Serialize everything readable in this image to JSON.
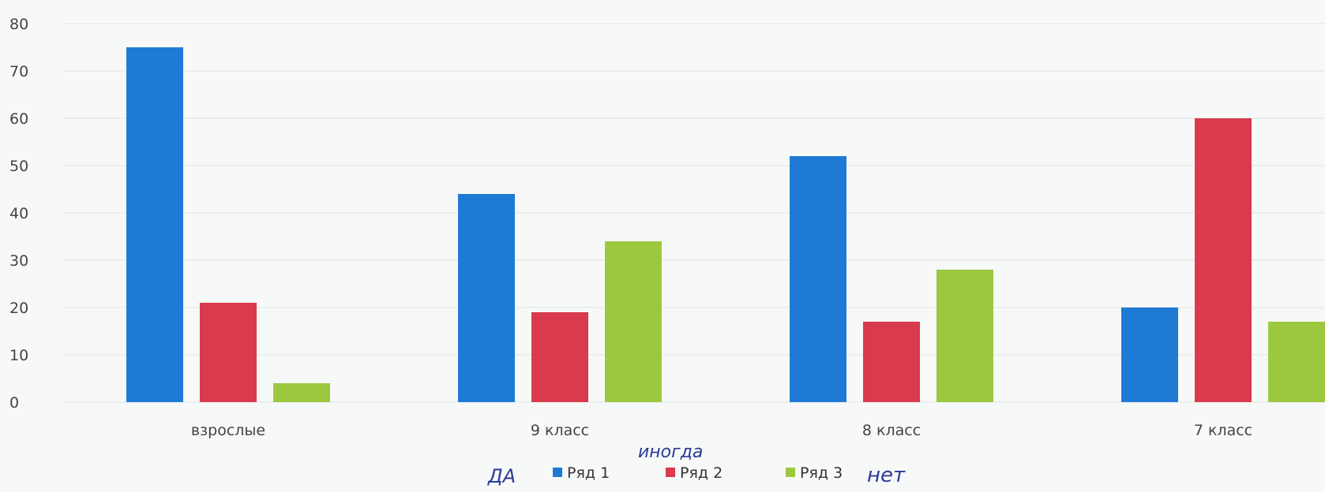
{
  "chart_data": {
    "type": "bar",
    "categories": [
      "взрослые",
      "9 класс",
      "8 класс",
      "7 класс"
    ],
    "series": [
      {
        "name": "Ряд 1",
        "color": "#1f7ad6",
        "values": [
          75,
          44,
          52,
          20
        ]
      },
      {
        "name": "Ряд 2",
        "color": "#d93a4e",
        "values": [
          21,
          19,
          17,
          60
        ]
      },
      {
        "name": "Ряд 3",
        "color": "#9cc83f",
        "values": [
          4,
          34,
          28,
          17
        ]
      }
    ],
    "ylim": [
      0,
      80
    ],
    "yticks": [
      0,
      10,
      20,
      30,
      40,
      50,
      60,
      70,
      80
    ],
    "grid": true,
    "legend_position": "bottom"
  },
  "annotations": {
    "yes": "ДА",
    "sometimes": "иногда",
    "no": "нет"
  }
}
